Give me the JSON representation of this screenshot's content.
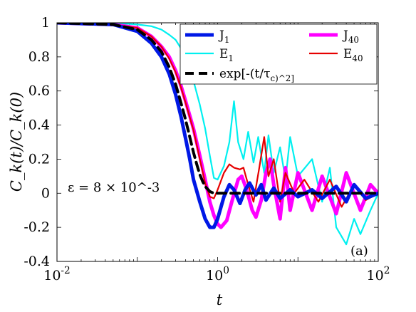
{
  "chart_data": {
    "type": "line",
    "x_scale": "log",
    "xlim": [
      0.01,
      100
    ],
    "ylim": [
      -0.4,
      1.0
    ],
    "xlabel": "t",
    "ylabel": "C_k(t)/C_k(0)",
    "x_tick_labels": [
      "10^-2",
      "10^0",
      "10^2"
    ],
    "y_tick_labels": [
      "-0.4",
      "-0.2",
      "0",
      "0.2",
      "0.4",
      "0.6",
      "0.8",
      "1"
    ],
    "legend_position": "top-right",
    "annotation": "ε = 8 × 10^-3",
    "panel_label": "(a)",
    "series": [
      {
        "name": "J_1",
        "color": "#0018e6",
        "style": "solid-thick",
        "points": [
          [
            0.01,
            1.0
          ],
          [
            0.05,
            0.99
          ],
          [
            0.1,
            0.95
          ],
          [
            0.15,
            0.88
          ],
          [
            0.2,
            0.8
          ],
          [
            0.25,
            0.7
          ],
          [
            0.3,
            0.58
          ],
          [
            0.35,
            0.45
          ],
          [
            0.4,
            0.32
          ],
          [
            0.45,
            0.2
          ],
          [
            0.5,
            0.08
          ],
          [
            0.6,
            -0.05
          ],
          [
            0.7,
            -0.15
          ],
          [
            0.8,
            -0.2
          ],
          [
            0.9,
            -0.2
          ],
          [
            1.0,
            -0.15
          ],
          [
            1.2,
            -0.02
          ],
          [
            1.4,
            0.05
          ],
          [
            1.6,
            0.02
          ],
          [
            1.9,
            -0.06
          ],
          [
            2.2,
            0.02
          ],
          [
            2.5,
            0.06
          ],
          [
            3.0,
            -0.01
          ],
          [
            3.5,
            0.05
          ],
          [
            4.0,
            -0.04
          ],
          [
            5.0,
            0.03
          ],
          [
            6.0,
            -0.03
          ],
          [
            8.0,
            0.02
          ],
          [
            10.0,
            -0.02
          ],
          [
            15.0,
            0.02
          ],
          [
            20.0,
            -0.03
          ],
          [
            30.0,
            0.04
          ],
          [
            40.0,
            -0.05
          ],
          [
            50.0,
            0.05
          ],
          [
            70.0,
            -0.03
          ],
          [
            100.0,
            0.0
          ]
        ]
      },
      {
        "name": "J_40",
        "color": "#ff00ff",
        "style": "solid-thick",
        "points": [
          [
            0.01,
            1.0
          ],
          [
            0.05,
            0.99
          ],
          [
            0.1,
            0.97
          ],
          [
            0.15,
            0.92
          ],
          [
            0.2,
            0.86
          ],
          [
            0.25,
            0.8
          ],
          [
            0.3,
            0.72
          ],
          [
            0.35,
            0.63
          ],
          [
            0.4,
            0.54
          ],
          [
            0.5,
            0.38
          ],
          [
            0.6,
            0.22
          ],
          [
            0.7,
            0.08
          ],
          [
            0.8,
            -0.05
          ],
          [
            0.9,
            -0.13
          ],
          [
            1.0,
            -0.18
          ],
          [
            1.1,
            -0.2
          ],
          [
            1.3,
            -0.16
          ],
          [
            1.5,
            -0.05
          ],
          [
            1.8,
            0.08
          ],
          [
            2.0,
            0.1
          ],
          [
            2.3,
            0.02
          ],
          [
            2.7,
            -0.1
          ],
          [
            3.0,
            -0.14
          ],
          [
            3.5,
            -0.04
          ],
          [
            4.0,
            0.12
          ],
          [
            4.5,
            0.2
          ],
          [
            5.0,
            0.05
          ],
          [
            6.0,
            -0.15
          ],
          [
            7.0,
            0.15
          ],
          [
            8.0,
            -0.1
          ],
          [
            10.0,
            0.12
          ],
          [
            15.0,
            -0.1
          ],
          [
            20.0,
            0.1
          ],
          [
            30.0,
            -0.12
          ],
          [
            40.0,
            0.12
          ],
          [
            60.0,
            -0.1
          ],
          [
            80.0,
            0.05
          ],
          [
            100.0,
            0.0
          ]
        ]
      },
      {
        "name": "E_1",
        "color": "#00f0f0",
        "style": "solid",
        "points": [
          [
            0.01,
            1.0
          ],
          [
            0.05,
            1.0
          ],
          [
            0.1,
            0.99
          ],
          [
            0.15,
            0.98
          ],
          [
            0.2,
            0.96
          ],
          [
            0.25,
            0.93
          ],
          [
            0.3,
            0.9
          ],
          [
            0.35,
            0.85
          ],
          [
            0.4,
            0.79
          ],
          [
            0.45,
            0.72
          ],
          [
            0.5,
            0.66
          ],
          [
            0.6,
            0.52
          ],
          [
            0.7,
            0.38
          ],
          [
            0.8,
            0.22
          ],
          [
            0.9,
            0.09
          ],
          [
            1.0,
            0.08
          ],
          [
            1.2,
            0.16
          ],
          [
            1.4,
            0.3
          ],
          [
            1.6,
            0.54
          ],
          [
            1.8,
            0.3
          ],
          [
            2.1,
            0.2
          ],
          [
            2.4,
            0.36
          ],
          [
            2.8,
            0.18
          ],
          [
            3.2,
            0.33
          ],
          [
            3.8,
            0.12
          ],
          [
            4.3,
            0.34
          ],
          [
            5.0,
            0.12
          ],
          [
            6.0,
            0.27
          ],
          [
            7.0,
            0.08
          ],
          [
            8.0,
            0.33
          ],
          [
            10.0,
            0.1
          ],
          [
            15.0,
            0.2
          ],
          [
            20.0,
            -0.05
          ],
          [
            25.0,
            0.15
          ],
          [
            30.0,
            -0.2
          ],
          [
            40.0,
            -0.3
          ],
          [
            50.0,
            -0.15
          ],
          [
            60.0,
            -0.24
          ],
          [
            80.0,
            -0.1
          ],
          [
            100.0,
            0.0
          ]
        ]
      },
      {
        "name": "E_40",
        "color": "#e60000",
        "style": "solid",
        "points": [
          [
            0.01,
            1.0
          ],
          [
            0.05,
            0.99
          ],
          [
            0.1,
            0.97
          ],
          [
            0.15,
            0.92
          ],
          [
            0.2,
            0.86
          ],
          [
            0.25,
            0.79
          ],
          [
            0.3,
            0.71
          ],
          [
            0.35,
            0.62
          ],
          [
            0.4,
            0.53
          ],
          [
            0.5,
            0.37
          ],
          [
            0.6,
            0.2
          ],
          [
            0.7,
            0.06
          ],
          [
            0.8,
            -0.02
          ],
          [
            0.9,
            -0.03
          ],
          [
            1.0,
            0.02
          ],
          [
            1.2,
            0.12
          ],
          [
            1.4,
            0.17
          ],
          [
            1.6,
            0.15
          ],
          [
            1.9,
            0.14
          ],
          [
            2.1,
            0.15
          ],
          [
            2.4,
            0.05
          ],
          [
            2.8,
            -0.05
          ],
          [
            3.3,
            0.15
          ],
          [
            3.8,
            0.33
          ],
          [
            4.3,
            0.1
          ],
          [
            5.0,
            0.2
          ],
          [
            6.0,
            -0.05
          ],
          [
            7.0,
            0.12
          ],
          [
            9.0,
            0.0
          ],
          [
            12.0,
            0.08
          ],
          [
            18.0,
            -0.05
          ],
          [
            25.0,
            0.08
          ],
          [
            35.0,
            -0.08
          ],
          [
            50.0,
            0.05
          ],
          [
            70.0,
            -0.04
          ],
          [
            100.0,
            0.0
          ]
        ]
      },
      {
        "name": "exp[-(t/τ_c)^2]",
        "color": "#000000",
        "style": "dashed",
        "points": [
          [
            0.01,
            1.0
          ],
          [
            0.05,
            0.99
          ],
          [
            0.1,
            0.96
          ],
          [
            0.15,
            0.9
          ],
          [
            0.2,
            0.83
          ],
          [
            0.25,
            0.74
          ],
          [
            0.3,
            0.64
          ],
          [
            0.35,
            0.53
          ],
          [
            0.4,
            0.43
          ],
          [
            0.45,
            0.33
          ],
          [
            0.5,
            0.24
          ],
          [
            0.55,
            0.17
          ],
          [
            0.6,
            0.11
          ],
          [
            0.65,
            0.07
          ],
          [
            0.7,
            0.04
          ],
          [
            0.8,
            0.01
          ],
          [
            0.9,
            0.0
          ],
          [
            1.0,
            0.0
          ],
          [
            2.0,
            0.0
          ],
          [
            5.0,
            0.0
          ],
          [
            10.0,
            0.0
          ],
          [
            100.0,
            0.0
          ]
        ]
      }
    ]
  }
}
